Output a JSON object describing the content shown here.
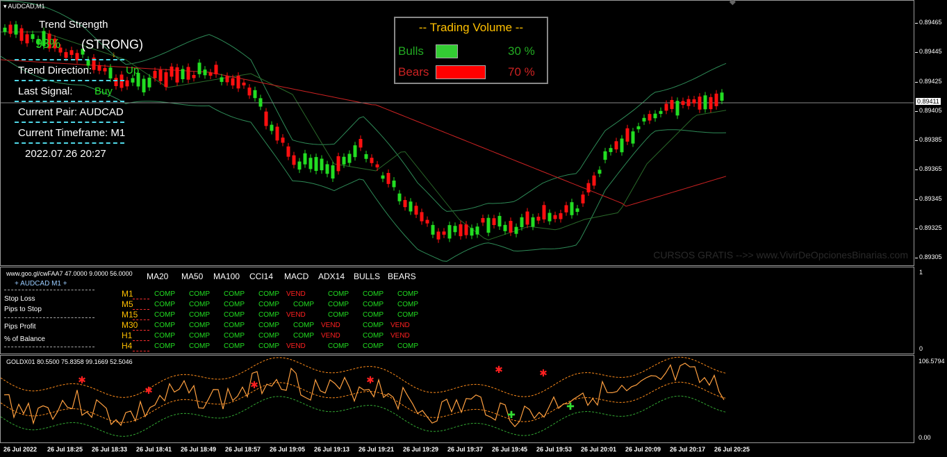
{
  "chart": {
    "symbol_title": "AUDCAD,M1",
    "price_axis": [
      "0.89465",
      "0.89445",
      "0.89425",
      "0.89405",
      "0.89385",
      "0.89365",
      "0.89345",
      "0.89325",
      "0.89305"
    ],
    "current_price": "0.89411",
    "watermark": "CURSOS GRATIS -->> www.VivirDeOpcionesBinarias.com"
  },
  "trend_panel": {
    "title": "Trend Strength",
    "percent": "93%",
    "strength": "(STRONG)",
    "direction_label": "Trend Direction:",
    "direction_value": "Up",
    "signal_label": "Last Signal:",
    "signal_value": "Buy",
    "pair_label": "Current Pair: AUDCAD",
    "timeframe_label": "Current Timeframe: M1",
    "datetime": "2022.07.26 20:27"
  },
  "volume_panel": {
    "title": "-- Trading Volume --",
    "bulls_label": "Bulls",
    "bulls_value": "30 %",
    "bears_label": "Bears",
    "bears_value": "70 %",
    "bulls_color": "#33cc33",
    "bears_color": "#ff0000"
  },
  "signals_panel": {
    "header": "www.goo.gl/cwFAA7 47.0000 9.0000 56.0000",
    "pair_title": "+ AUDCAD M1 +",
    "left_items": [
      "Stop Loss",
      "Pips to Stop",
      "Pips Profit",
      "% of Balance"
    ],
    "axis_top": "1",
    "axis_bottom": "0",
    "columns": [
      "MA20",
      "MA50",
      "MA100",
      "CCI14",
      "MACD",
      "ADX14",
      "BULLS",
      "BEARS"
    ],
    "rows": [
      {
        "tf": "M1",
        "cells": [
          "COMP",
          "COMP",
          "COMP",
          "COMP",
          "VEND",
          "COMP",
          "COMP",
          "COMP"
        ]
      },
      {
        "tf": "M5",
        "cells": [
          "COMP",
          "COMP",
          "COMP",
          "COMP",
          "COMP",
          "COMP",
          "COMP",
          "COMP"
        ]
      },
      {
        "tf": "M15",
        "cells": [
          "COMP",
          "COMP",
          "COMP",
          "COMP",
          "VEND",
          "COMP",
          "COMP",
          "COMP"
        ]
      },
      {
        "tf": "M30",
        "cells": [
          "COMP",
          "COMP",
          "COMP",
          "COMP",
          "COMP",
          "VEND",
          "COMP",
          "VEND"
        ]
      },
      {
        "tf": "H1",
        "cells": [
          "COMP",
          "COMP",
          "COMP",
          "COMP",
          "COMP",
          "VEND",
          "COMP",
          "VEND"
        ]
      },
      {
        "tf": "H4",
        "cells": [
          "COMP",
          "COMP",
          "COMP",
          "COMP",
          "VEND",
          "COMP",
          "COMP",
          "COMP"
        ]
      }
    ]
  },
  "gold_panel": {
    "header": "GOLDX01 80.5500 75.8358 99.1669 52.5046",
    "axis_top": "106.5794",
    "axis_bottom": "0.00"
  },
  "time_axis": [
    "26 Jul 2022",
    "26 Jul 18:25",
    "26 Jul 18:33",
    "26 Jul 18:41",
    "26 Jul 18:49",
    "26 Jul 18:57",
    "26 Jul 19:05",
    "26 Jul 19:13",
    "26 Jul 19:21",
    "26 Jul 19:29",
    "26 Jul 19:37",
    "26 Jul 19:45",
    "26 Jul 19:53",
    "26 Jul 20:01",
    "26 Jul 20:09",
    "26 Jul 20:17",
    "26 Jul 20:25"
  ]
}
